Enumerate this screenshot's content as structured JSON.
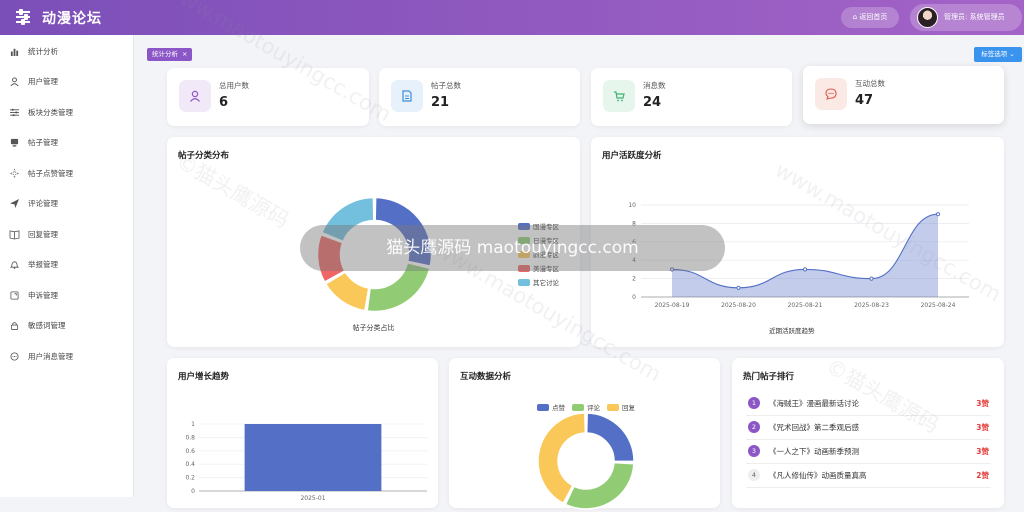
{
  "header": {
    "app_title": "动漫论坛",
    "home_button": "⌂ 返回首页",
    "user_label": "管理员: 系统管理员"
  },
  "sidebar": {
    "items": [
      {
        "label": "统计分析",
        "icon": "bar-chart-icon"
      },
      {
        "label": "用户管理",
        "icon": "user-icon"
      },
      {
        "label": "板块分类管理",
        "icon": "sliders-icon"
      },
      {
        "label": "帖子管理",
        "icon": "post-icon"
      },
      {
        "label": "帖子点赞管理",
        "icon": "sparkle-icon"
      },
      {
        "label": "评论管理",
        "icon": "send-icon"
      },
      {
        "label": "回复管理",
        "icon": "book-icon"
      },
      {
        "label": "举报管理",
        "icon": "bell-icon"
      },
      {
        "label": "申诉管理",
        "icon": "appeal-icon"
      },
      {
        "label": "敏感词管理",
        "icon": "lock-icon"
      },
      {
        "label": "用户消息管理",
        "icon": "message-icon"
      }
    ]
  },
  "tabs": {
    "active_tag": "统计分析",
    "close": "×",
    "options_button": "标签选项 ⌄"
  },
  "stats": [
    {
      "label": "总用户数",
      "value": "6",
      "icon": "user-icon",
      "color": "#8b57c6",
      "bg": "#f1e9f8"
    },
    {
      "label": "帖子总数",
      "value": "21",
      "icon": "document-icon",
      "color": "#3b8fd6",
      "bg": "#e7f1fb"
    },
    {
      "label": "消息数",
      "value": "24",
      "icon": "cart-icon",
      "color": "#3cb371",
      "bg": "#e6f6ec"
    },
    {
      "label": "互动总数",
      "value": "47",
      "icon": "chat-icon",
      "color": "#e05a4a",
      "bg": "#fbe9e6"
    }
  ],
  "panels": {
    "category": {
      "title": "帖子分类分布",
      "caption": "帖子分类占比"
    },
    "activity": {
      "title": "用户活跃度分析",
      "caption": "近期活跃度趋势"
    },
    "growth": {
      "title": "用户增长趋势"
    },
    "interaction": {
      "title": "互动数据分析"
    },
    "hot": {
      "title": "热门帖子排行"
    }
  },
  "hot_posts": [
    {
      "rank": "1",
      "title": "《海贼王》漫画最新话讨论",
      "likes": "3赞"
    },
    {
      "rank": "2",
      "title": "《咒术回战》第二季观后感",
      "likes": "3赞"
    },
    {
      "rank": "3",
      "title": "《一人之下》动画新季预测",
      "likes": "3赞"
    },
    {
      "rank": "4",
      "title": "《凡人修仙传》动画质量真高",
      "likes": "2赞"
    }
  ],
  "watermark": {
    "text": "www.maotouyingcc.com",
    "text_cn": "©猫头鹰源码",
    "banner": "猫头鹰源码 maotouyingcc.com"
  },
  "chart_data": [
    {
      "type": "pie",
      "title": "帖子分类分布",
      "xlabel": "帖子分类占比",
      "legend_position": "right",
      "categories": [
        "国漫专区",
        "日漫专区",
        "韵漫专区",
        "美漫专区",
        "其它讨论"
      ],
      "values": [
        6,
        5,
        3,
        3,
        4
      ],
      "colors": [
        "#5470c6",
        "#91cc75",
        "#fac858",
        "#ee6666",
        "#73c0de"
      ]
    },
    {
      "type": "area",
      "title": "用户活跃度分析",
      "xlabel": "近期活跃度趋势",
      "x": [
        "2025-08-19",
        "2025-08-20",
        "2025-08-21",
        "2025-08-23",
        "2025-08-24"
      ],
      "values": [
        3,
        1,
        3,
        2,
        9
      ],
      "ylim": [
        0,
        10
      ],
      "yticks": [
        0,
        2,
        4,
        6,
        8,
        10
      ],
      "grid": true
    },
    {
      "type": "bar",
      "title": "用户增长趋势",
      "categories": [
        "2025-01"
      ],
      "values": [
        1
      ],
      "ylim": [
        0,
        1
      ],
      "yticks": [
        0,
        0.2,
        0.4,
        0.6,
        0.8,
        1
      ]
    },
    {
      "type": "pie",
      "title": "互动数据分析",
      "legend_position": "top",
      "categories": [
        "点赞",
        "评论",
        "回复"
      ],
      "values": [
        12,
        15,
        20
      ],
      "colors": [
        "#5470c6",
        "#91cc75",
        "#fac858"
      ]
    }
  ]
}
